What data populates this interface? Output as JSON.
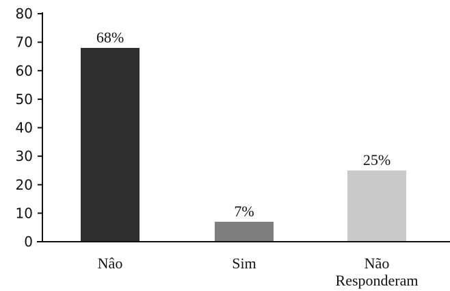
{
  "chart_data": {
    "type": "bar",
    "categories": [
      "Nâo",
      "Sim",
      "Não|Responderam"
    ],
    "values": [
      68,
      7,
      25
    ],
    "value_labels": [
      "68%",
      "7%",
      "25%"
    ],
    "bar_colors": [
      "#2e2e2e",
      "#7f7f7f",
      "#c9c9c9"
    ],
    "ylim": [
      0,
      80
    ],
    "yticks": [
      0,
      10,
      20,
      30,
      40,
      50,
      60,
      70,
      80
    ],
    "ytick_labels": [
      "0",
      "10",
      "20",
      "30",
      "40",
      "50",
      "60",
      "70",
      "80"
    ],
    "title": "",
    "xlabel": "",
    "ylabel": "",
    "grid": false,
    "legend": "none"
  }
}
